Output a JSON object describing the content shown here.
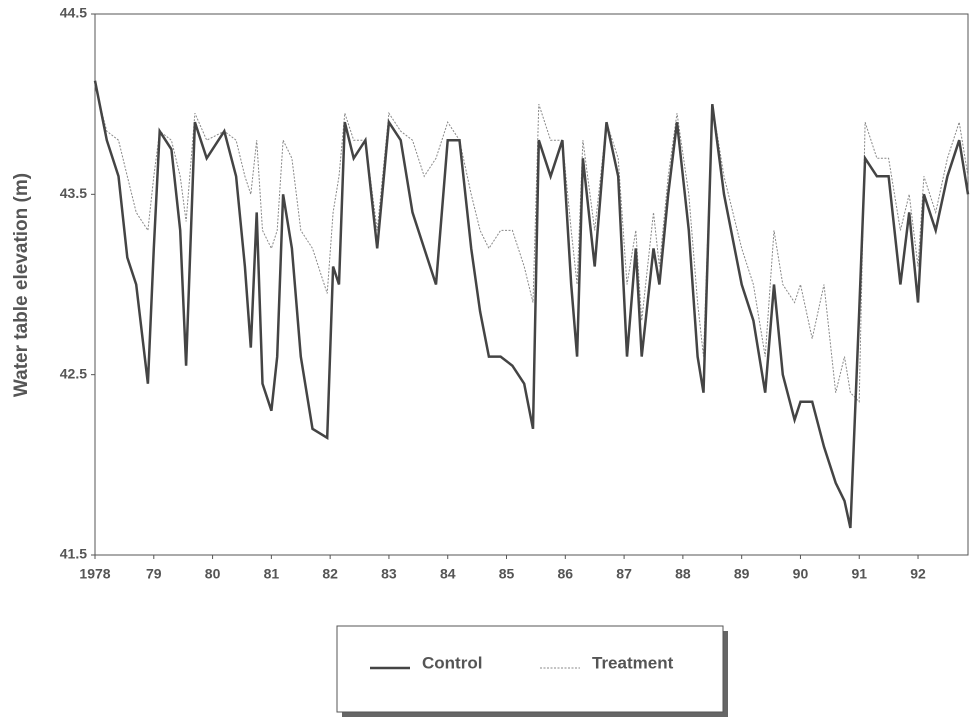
{
  "chart_data": {
    "type": "line",
    "y_label": "Water table elevation (m)",
    "x": [
      1978.0,
      1978.2,
      1978.4,
      1978.55,
      1978.7,
      1978.9,
      1979.0,
      1979.1,
      1979.3,
      1979.45,
      1979.55,
      1979.7,
      1979.9,
      1980.2,
      1980.4,
      1980.55,
      1980.65,
      1980.75,
      1980.85,
      1981.0,
      1981.1,
      1981.2,
      1981.35,
      1981.5,
      1981.7,
      1981.95,
      1982.05,
      1982.15,
      1982.25,
      1982.4,
      1982.6,
      1982.8,
      1983.0,
      1983.2,
      1983.4,
      1983.6,
      1983.8,
      1984.0,
      1984.2,
      1984.4,
      1984.55,
      1984.7,
      1984.9,
      1985.1,
      1985.3,
      1985.45,
      1985.55,
      1985.75,
      1985.95,
      1986.1,
      1986.2,
      1986.3,
      1986.5,
      1986.7,
      1986.9,
      1987.05,
      1987.2,
      1987.3,
      1987.5,
      1987.6,
      1987.75,
      1987.9,
      1988.1,
      1988.25,
      1988.35,
      1988.5,
      1988.7,
      1989.0,
      1989.2,
      1989.4,
      1989.55,
      1989.7,
      1989.9,
      1990.0,
      1990.2,
      1990.4,
      1990.6,
      1990.75,
      1990.85,
      1991.0,
      1991.1,
      1991.3,
      1991.5,
      1991.7,
      1991.85,
      1992.0,
      1992.1,
      1992.3,
      1992.5,
      1992.7,
      1992.85
    ],
    "series": [
      {
        "name": "Control",
        "color": "#444444",
        "values": [
          44.13,
          43.8,
          43.6,
          43.15,
          43.0,
          42.45,
          43.2,
          43.85,
          43.75,
          43.3,
          42.55,
          43.9,
          43.7,
          43.85,
          43.6,
          43.1,
          42.65,
          43.4,
          42.45,
          42.3,
          42.6,
          43.5,
          43.2,
          42.6,
          42.2,
          42.15,
          43.1,
          43.0,
          43.9,
          43.7,
          43.8,
          43.2,
          43.9,
          43.8,
          43.4,
          43.2,
          43.0,
          43.8,
          43.8,
          43.2,
          42.85,
          42.6,
          42.6,
          42.55,
          42.45,
          42.2,
          43.8,
          43.6,
          43.8,
          43.0,
          42.6,
          43.7,
          43.1,
          43.9,
          43.6,
          42.6,
          43.2,
          42.6,
          43.2,
          43.0,
          43.5,
          43.9,
          43.3,
          42.6,
          42.4,
          44.0,
          43.5,
          43.0,
          42.8,
          42.4,
          43.0,
          42.5,
          42.25,
          42.35,
          42.35,
          42.1,
          41.9,
          41.8,
          41.65,
          42.85,
          43.7,
          43.6,
          43.6,
          43.0,
          43.4,
          42.9,
          43.5,
          43.3,
          43.6,
          43.8,
          43.5
        ]
      },
      {
        "name": "Treatment",
        "color": "#888888",
        "values": [
          44.1,
          43.85,
          43.8,
          43.6,
          43.4,
          43.3,
          43.6,
          43.85,
          43.8,
          43.6,
          43.35,
          43.95,
          43.8,
          43.85,
          43.8,
          43.6,
          43.5,
          43.8,
          43.3,
          43.2,
          43.3,
          43.8,
          43.7,
          43.3,
          43.2,
          42.95,
          43.4,
          43.6,
          43.95,
          43.8,
          43.8,
          43.3,
          43.95,
          43.85,
          43.8,
          43.6,
          43.7,
          43.9,
          43.8,
          43.5,
          43.3,
          43.2,
          43.3,
          43.3,
          43.1,
          42.9,
          44.0,
          43.8,
          43.8,
          43.3,
          43.0,
          43.8,
          43.3,
          43.9,
          43.7,
          43.0,
          43.3,
          42.8,
          43.4,
          43.1,
          43.6,
          43.95,
          43.5,
          42.9,
          42.6,
          44.0,
          43.6,
          43.2,
          43.0,
          42.6,
          43.3,
          43.0,
          42.9,
          43.0,
          42.7,
          43.0,
          42.4,
          42.6,
          42.4,
          42.35,
          43.9,
          43.7,
          43.7,
          43.3,
          43.5,
          43.1,
          43.6,
          43.4,
          43.7,
          43.9,
          43.6
        ]
      }
    ],
    "xlim": [
      1978,
      1992.85
    ],
    "xticks": [
      1978,
      {
        "value": 1979,
        "label": "79"
      },
      {
        "value": 1980,
        "label": "80"
      },
      {
        "value": 1981,
        "label": "81"
      },
      {
        "value": 1982,
        "label": "82"
      },
      {
        "value": 1983,
        "label": "83"
      },
      {
        "value": 1984,
        "label": "84"
      },
      {
        "value": 1985,
        "label": "85"
      },
      {
        "value": 1986,
        "label": "86"
      },
      {
        "value": 1987,
        "label": "87"
      },
      {
        "value": 1988,
        "label": "88"
      },
      {
        "value": 1989,
        "label": "89"
      },
      {
        "value": 1990,
        "label": "90"
      },
      {
        "value": 1991,
        "label": "91"
      },
      {
        "value": 1992,
        "label": "92"
      }
    ],
    "ylim": [
      41.5,
      44.5
    ],
    "yticks": [
      41.5,
      42.5,
      43.5,
      44.5
    ]
  }
}
